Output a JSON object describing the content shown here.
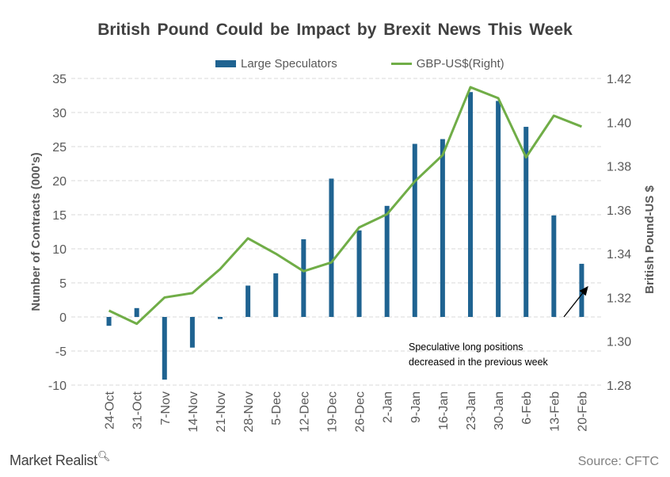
{
  "chart_data": {
    "type": "bar",
    "title": "British Pound Could be Impact by Brexit News This Week",
    "ylabel": "Number of Contracts (000's)",
    "y2label": "British Pound-US $",
    "ylim": [
      -10,
      35
    ],
    "y_ticks": [
      35,
      30,
      25,
      20,
      15,
      10,
      5,
      0,
      -5,
      -10
    ],
    "y2lim": [
      1.28,
      1.42
    ],
    "y2_ticks": [
      "1.42",
      "1.40",
      "1.38",
      "1.36",
      "1.34",
      "1.32",
      "1.30",
      "1.28"
    ],
    "grid": true,
    "legend_position": "top",
    "categories": [
      "24-Oct",
      "31-Oct",
      "7-Nov",
      "14-Nov",
      "21-Nov",
      "28-Nov",
      "5-Dec",
      "12-Dec",
      "19-Dec",
      "26-Dec",
      "2-Jan",
      "9-Jan",
      "16-Jan",
      "23-Jan",
      "30-Jan",
      "6-Feb",
      "13-Feb",
      "20-Feb"
    ],
    "series": [
      {
        "name": "Large Speculators",
        "type": "bar",
        "axis": "left",
        "color": "#1f6391",
        "values": [
          -1.3,
          1.3,
          -9.2,
          -4.5,
          -0.3,
          4.6,
          6.4,
          11.4,
          20.3,
          12.7,
          16.3,
          25.4,
          26.1,
          33.0,
          31.7,
          27.9,
          14.9,
          7.8
        ]
      },
      {
        "name": "GBP-US$(Right)",
        "type": "line",
        "axis": "right",
        "color": "#70ad47",
        "values": [
          1.314,
          1.308,
          1.32,
          1.322,
          1.333,
          1.347,
          1.34,
          1.332,
          1.336,
          1.352,
          1.358,
          1.373,
          1.385,
          1.416,
          1.411,
          1.384,
          1.403,
          1.398
        ]
      }
    ],
    "annotation": {
      "line1": "Speculative long positions",
      "line2": "decreased in the previous week"
    }
  },
  "footer": {
    "brand": "Market Realist",
    "source": "Source: CFTC"
  },
  "colors": {
    "grid": "#d9d9d9",
    "axis_text": "#595959",
    "title": "#404040"
  }
}
